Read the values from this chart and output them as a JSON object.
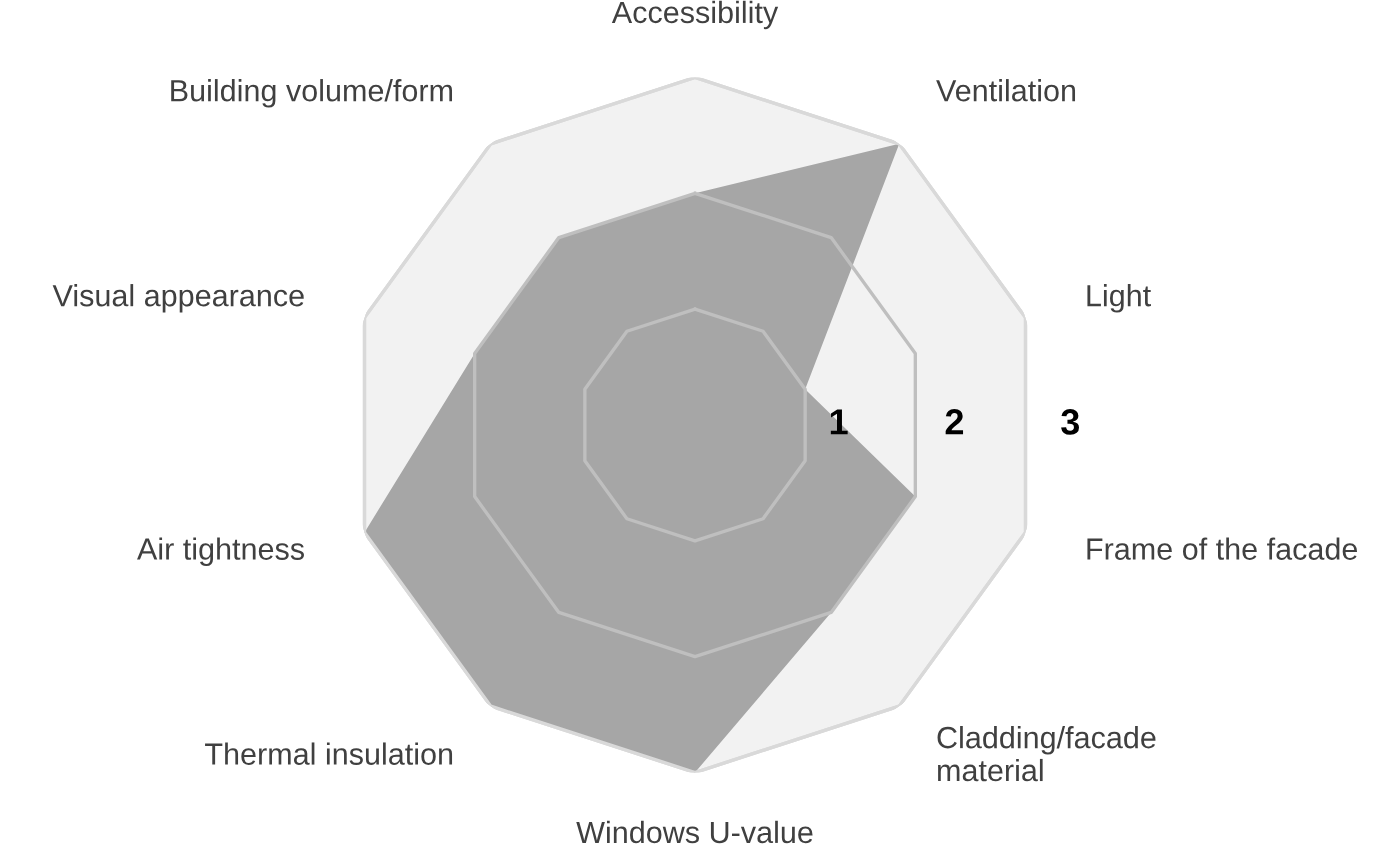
{
  "chart_data": {
    "type": "radar",
    "categories": [
      "Accessibility",
      "Ventilation",
      "Light",
      "Frame of the facade",
      "Cladding/facade\nmaterial",
      "Windows U-value",
      "Thermal insulation",
      "Air tightness",
      "Visual appearance",
      "Building volume/form"
    ],
    "series": [
      {
        "color": "#a6a6a6",
        "values": [
          2,
          3,
          1,
          2,
          2,
          3,
          3,
          3,
          2,
          2
        ]
      }
    ],
    "ylim": [
      0,
      3
    ],
    "yticks": [
      1,
      2,
      3
    ],
    "grid": true
  }
}
